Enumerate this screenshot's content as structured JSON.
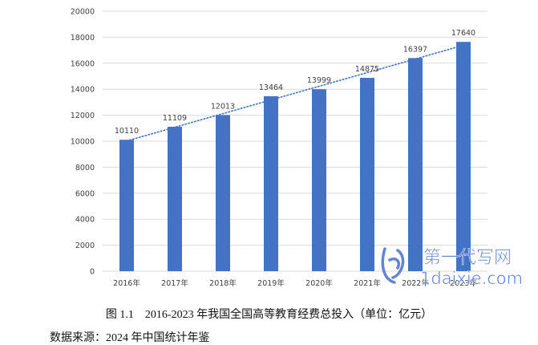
{
  "chart_data": {
    "type": "bar",
    "categories": [
      "2016年",
      "2017年",
      "2018年",
      "2019年",
      "2020年",
      "2021年",
      "2022年",
      "2023年"
    ],
    "values": [
      10110,
      11109,
      12013,
      13464,
      13999,
      14875,
      16397,
      17640
    ],
    "data_labels": [
      "10110",
      "11109",
      "12013",
      "13464",
      "13999",
      "14875",
      "16397",
      "17640"
    ],
    "ylim": [
      0,
      20000
    ],
    "yticks": [
      0,
      2000,
      4000,
      6000,
      8000,
      10000,
      12000,
      14000,
      16000,
      18000,
      20000
    ],
    "grid": true,
    "trendline": "linear dotted",
    "colors": {
      "bar": "#4472c4",
      "trend": "#4472c4",
      "grid": "#d9d9d9",
      "text": "#404040"
    }
  },
  "caption": "图 1.1　2016-2023 年我国全国高等教育经费总投入（单位：亿元）",
  "source": "数据来源：2024 年中国统计年鉴",
  "watermark": {
    "line1": "第一代写网",
    "line2": "1daixie.com",
    "color": "#4a6fd0"
  }
}
